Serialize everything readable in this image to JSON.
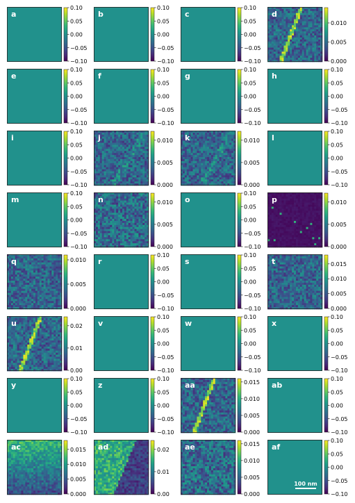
{
  "chart_data": {
    "type": "heatmap",
    "layout": {
      "rows": 8,
      "cols": 4
    },
    "colormap": "viridis",
    "panels": [
      {
        "label": "a",
        "kind": "flat",
        "ticks": [
          "0.10",
          "0.05",
          "0.00",
          "−0.05",
          "−0.10"
        ]
      },
      {
        "label": "b",
        "kind": "flat",
        "ticks": [
          "0.10",
          "0.05",
          "0.00",
          "−0.05",
          "−0.10"
        ]
      },
      {
        "label": "c",
        "kind": "flat",
        "ticks": [
          "0.10",
          "0.05",
          "0.00",
          "−0.05",
          "−0.10"
        ]
      },
      {
        "label": "d",
        "kind": "noise",
        "texture": "diagonal-line",
        "vmax": 0.014,
        "ticks": [
          "0.010",
          "0.005",
          "0.000"
        ],
        "tickvals": [
          0.01,
          0.005,
          0.0
        ]
      },
      {
        "label": "e",
        "kind": "flat",
        "ticks": [
          "0.10",
          "0.05",
          "0.00",
          "−0.05",
          "−0.10"
        ]
      },
      {
        "label": "f",
        "kind": "flat",
        "ticks": [
          "0.10",
          "0.05",
          "0.00",
          "−0.05",
          "−0.10"
        ]
      },
      {
        "label": "g",
        "kind": "flat",
        "ticks": [
          "0.10",
          "0.05",
          "0.00",
          "−0.05",
          "−0.10"
        ]
      },
      {
        "label": "h",
        "kind": "flat",
        "ticks": [
          "0.10",
          "0.05",
          "0.00",
          "−0.05",
          "−0.10"
        ]
      },
      {
        "label": "i",
        "kind": "flat",
        "ticks": [
          "0.10",
          "0.05",
          "0.00",
          "−0.05",
          "−0.10"
        ]
      },
      {
        "label": "j",
        "kind": "noise",
        "texture": "faint-diagonal",
        "vmax": 0.012,
        "ticks": [
          "0.010",
          "0.005",
          "0.000"
        ],
        "tickvals": [
          0.01,
          0.005,
          0.0
        ]
      },
      {
        "label": "k",
        "kind": "noise",
        "texture": "faint-diagonal",
        "vmax": 0.012,
        "ticks": [
          "0.010",
          "0.005",
          "0.000"
        ],
        "tickvals": [
          0.01,
          0.005,
          0.0
        ]
      },
      {
        "label": "l",
        "kind": "flat",
        "ticks": [
          "0.10",
          "0.05",
          "0.00",
          "−0.05",
          "−0.10"
        ]
      },
      {
        "label": "m",
        "kind": "flat",
        "ticks": [
          "0.10",
          "0.05",
          "0.00",
          "−0.05",
          "−0.10"
        ]
      },
      {
        "label": "n",
        "kind": "noise",
        "texture": "speckle",
        "vmax": 0.012,
        "ticks": [
          "0.010",
          "0.005",
          "0.000"
        ],
        "tickvals": [
          0.01,
          0.005,
          0.0
        ]
      },
      {
        "label": "o",
        "kind": "flat",
        "ticks": [
          "0.10",
          "0.05",
          "0.00",
          "−0.05",
          "−0.10"
        ]
      },
      {
        "label": "p",
        "kind": "noise",
        "texture": "sparse-dots",
        "vmax": 0.012,
        "ticks": [
          "0.010",
          "0.005",
          "0.000"
        ],
        "tickvals": [
          0.01,
          0.005,
          0.0
        ]
      },
      {
        "label": "q",
        "kind": "noise",
        "texture": "uniform",
        "vmax": 0.011,
        "ticks": [
          "0.010",
          "0.005",
          "0.000"
        ],
        "tickvals": [
          0.01,
          0.005,
          0.0
        ]
      },
      {
        "label": "r",
        "kind": "flat",
        "ticks": [
          "0.10",
          "0.05",
          "0.00",
          "−0.05",
          "−0.10"
        ]
      },
      {
        "label": "s",
        "kind": "flat",
        "ticks": [
          "0.10",
          "0.05",
          "0.00",
          "−0.05",
          "−0.10"
        ]
      },
      {
        "label": "t",
        "kind": "noise",
        "texture": "uniform",
        "vmax": 0.018,
        "ticks": [
          "0.015",
          "0.010",
          "0.005",
          "0.000"
        ],
        "tickvals": [
          0.015,
          0.01,
          0.005,
          0.0
        ]
      },
      {
        "label": "u",
        "kind": "noise",
        "texture": "diagonal-line",
        "vmax": 0.024,
        "ticks": [
          "0.02",
          "0.01",
          "0.00"
        ],
        "tickvals": [
          0.02,
          0.01,
          0.0
        ]
      },
      {
        "label": "v",
        "kind": "flat",
        "ticks": [
          "0.10",
          "0.05",
          "0.00",
          "−0.05",
          "−0.10"
        ]
      },
      {
        "label": "w",
        "kind": "flat",
        "ticks": [
          "0.10",
          "0.05",
          "0.00",
          "−0.05",
          "−0.10"
        ]
      },
      {
        "label": "x",
        "kind": "flat",
        "ticks": [
          "0.10",
          "0.05",
          "0.00",
          "−0.05",
          "−0.10"
        ]
      },
      {
        "label": "y",
        "kind": "flat",
        "ticks": [
          "0.10",
          "0.05",
          "0.00",
          "−0.05",
          "−0.10"
        ]
      },
      {
        "label": "z",
        "kind": "flat",
        "ticks": [
          "0.10",
          "0.05",
          "0.00",
          "−0.05",
          "−0.10"
        ]
      },
      {
        "label": "aa",
        "kind": "noise",
        "texture": "diagonal-line",
        "vmax": 0.016,
        "ticks": [
          "0.015",
          "0.010",
          "0.005",
          "0.000"
        ],
        "tickvals": [
          0.015,
          0.01,
          0.005,
          0.0
        ]
      },
      {
        "label": "ab",
        "kind": "flat",
        "ticks": [
          "0.10",
          "0.05",
          "0.00",
          "−0.05",
          "−0.10"
        ]
      },
      {
        "label": "ac",
        "kind": "noise",
        "texture": "gradient",
        "vmax": 0.018,
        "ticks": [
          "0.015",
          "0.010",
          "0.005",
          "0.000"
        ],
        "tickvals": [
          0.015,
          0.01,
          0.005,
          0.0
        ]
      },
      {
        "label": "ad",
        "kind": "noise",
        "texture": "split",
        "vmax": 0.024,
        "ticks": [
          "0.02",
          "0.01",
          "0.00"
        ],
        "tickvals": [
          0.02,
          0.01,
          0.0
        ]
      },
      {
        "label": "ae",
        "kind": "noise",
        "texture": "speckle",
        "vmax": 0.016,
        "ticks": [
          "0.015",
          "0.010",
          "0.005",
          "0.000"
        ],
        "tickvals": [
          0.015,
          0.01,
          0.005,
          0.0
        ]
      },
      {
        "label": "af",
        "kind": "flat",
        "ticks": [
          "0.10",
          "0.05",
          "0.00",
          "−0.05",
          "−0.10"
        ],
        "scalebar": "100 nm"
      }
    ]
  },
  "colors": {
    "flat_fill": "#21918c",
    "viridis": [
      "#440154",
      "#482878",
      "#3e4989",
      "#31688e",
      "#26828e",
      "#1f9e89",
      "#35b779",
      "#6ece58",
      "#b5de2b",
      "#fde725"
    ]
  }
}
